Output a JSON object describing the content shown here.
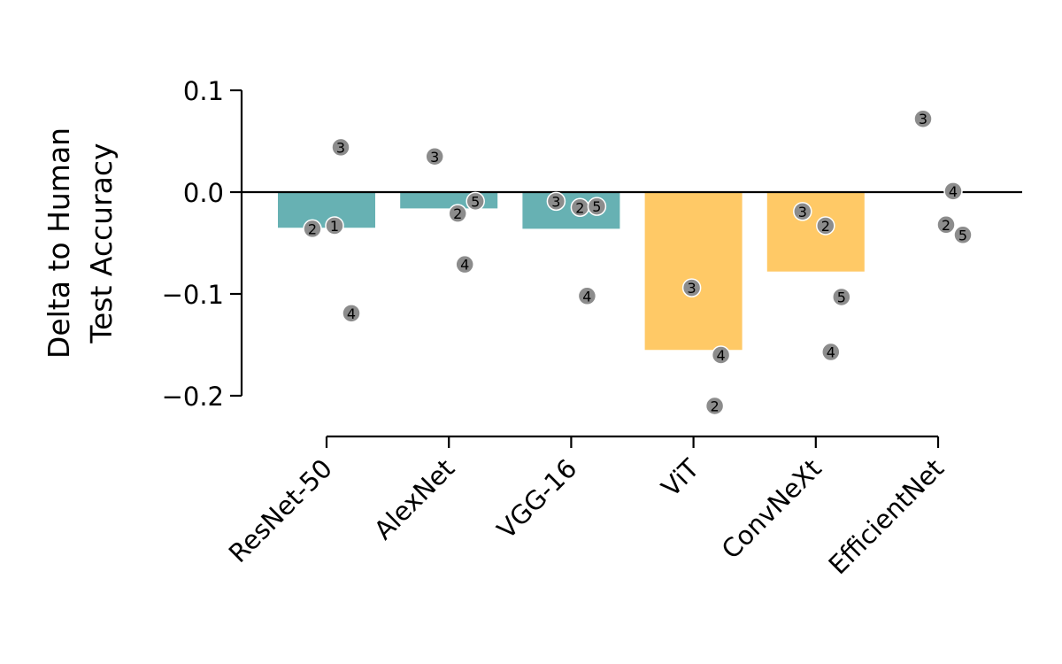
{
  "chart_data": {
    "type": "bar",
    "ylabel_lines": [
      "Delta to Human",
      "Test Accuracy"
    ],
    "ylim": [
      -0.2,
      0.1
    ],
    "yticks": [
      0.1,
      0.0,
      -0.1,
      -0.2
    ],
    "ytick_labels": [
      "0.1",
      "0.0",
      "−0.1",
      "−0.2"
    ],
    "categories": [
      "ResNet-50",
      "AlexNet",
      "VGG-16",
      "ViT",
      "ConvNeXt",
      "EfficientNet"
    ],
    "values": [
      -0.035,
      -0.016,
      -0.036,
      -0.155,
      -0.078,
      null
    ],
    "bar_colors": [
      "#67b1b3",
      "#67b1b3",
      "#67b1b3",
      "#ffc966",
      "#ffc966",
      null
    ],
    "point_color": "#8c8c8c",
    "points": [
      {
        "category": 0,
        "label": "3",
        "value": 0.044
      },
      {
        "category": 0,
        "label": "2",
        "value": -0.036
      },
      {
        "category": 0,
        "label": "1",
        "value": -0.033
      },
      {
        "category": 0,
        "label": "4",
        "value": -0.119
      },
      {
        "category": 1,
        "label": "3",
        "value": 0.035
      },
      {
        "category": 1,
        "label": "5",
        "value": -0.009
      },
      {
        "category": 1,
        "label": "2",
        "value": -0.021
      },
      {
        "category": 1,
        "label": "4",
        "value": -0.071
      },
      {
        "category": 2,
        "label": "3",
        "value": -0.009
      },
      {
        "category": 2,
        "label": "2",
        "value": -0.015
      },
      {
        "category": 2,
        "label": "5",
        "value": -0.014
      },
      {
        "category": 2,
        "label": "4",
        "value": -0.102
      },
      {
        "category": 3,
        "label": "3",
        "value": -0.094
      },
      {
        "category": 3,
        "label": "4",
        "value": -0.16
      },
      {
        "category": 3,
        "label": "2",
        "value": -0.21
      },
      {
        "category": 4,
        "label": "3",
        "value": -0.019
      },
      {
        "category": 4,
        "label": "2",
        "value": -0.033
      },
      {
        "category": 4,
        "label": "5",
        "value": -0.103
      },
      {
        "category": 4,
        "label": "4",
        "value": -0.157
      },
      {
        "category": 5,
        "label": "3",
        "value": 0.072
      },
      {
        "category": 5,
        "label": "4",
        "value": 0.001
      },
      {
        "category": 5,
        "label": "2",
        "value": -0.032
      },
      {
        "category": 5,
        "label": "5",
        "value": -0.042
      }
    ]
  }
}
